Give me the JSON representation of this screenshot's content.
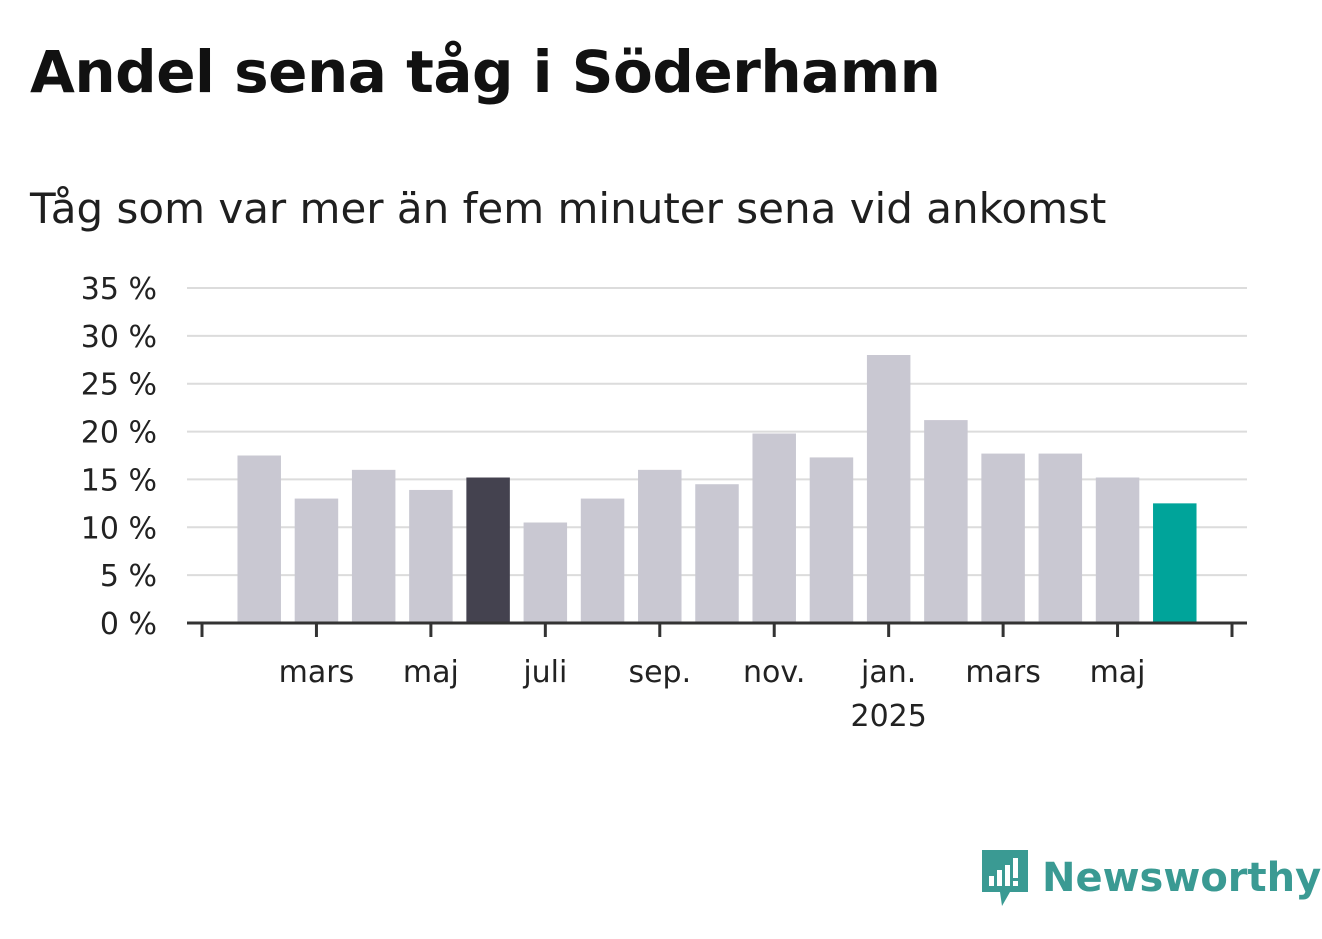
{
  "chart_data": {
    "type": "bar",
    "title": "Andel sena tåg i Söderhamn",
    "subtitle": "Tåg som var mer än fem minuter sena vid ankomst",
    "ylim": [
      0,
      35
    ],
    "y_ticks": [
      "0 %",
      "5 %",
      "10 %",
      "15 %",
      "20 %",
      "25 %",
      "30 %",
      "35 %"
    ],
    "y_tick_values": [
      0,
      5,
      10,
      15,
      20,
      25,
      30,
      35
    ],
    "x_tick_labels": [
      {
        "label": "mars",
        "sub": ""
      },
      {
        "label": "maj",
        "sub": ""
      },
      {
        "label": "juli",
        "sub": ""
      },
      {
        "label": "sep.",
        "sub": ""
      },
      {
        "label": "nov.",
        "sub": ""
      },
      {
        "label": "jan.",
        "sub": "2025"
      },
      {
        "label": "mars",
        "sub": ""
      },
      {
        "label": "maj",
        "sub": ""
      }
    ],
    "values": [
      17.5,
      13.0,
      16.0,
      13.9,
      15.2,
      10.5,
      13.0,
      16.0,
      14.5,
      19.8,
      17.3,
      28.0,
      21.2,
      17.7,
      17.7,
      15.2,
      12.5
    ],
    "highlight": {
      "4": "#44424f",
      "16": "#00a49a"
    },
    "bar_color": "#c9c8d2",
    "grid": true,
    "legend": "none"
  },
  "brand": {
    "name": "Newsworthy",
    "icon": "newsworthy-logo-icon",
    "color": "#3a9a93"
  }
}
